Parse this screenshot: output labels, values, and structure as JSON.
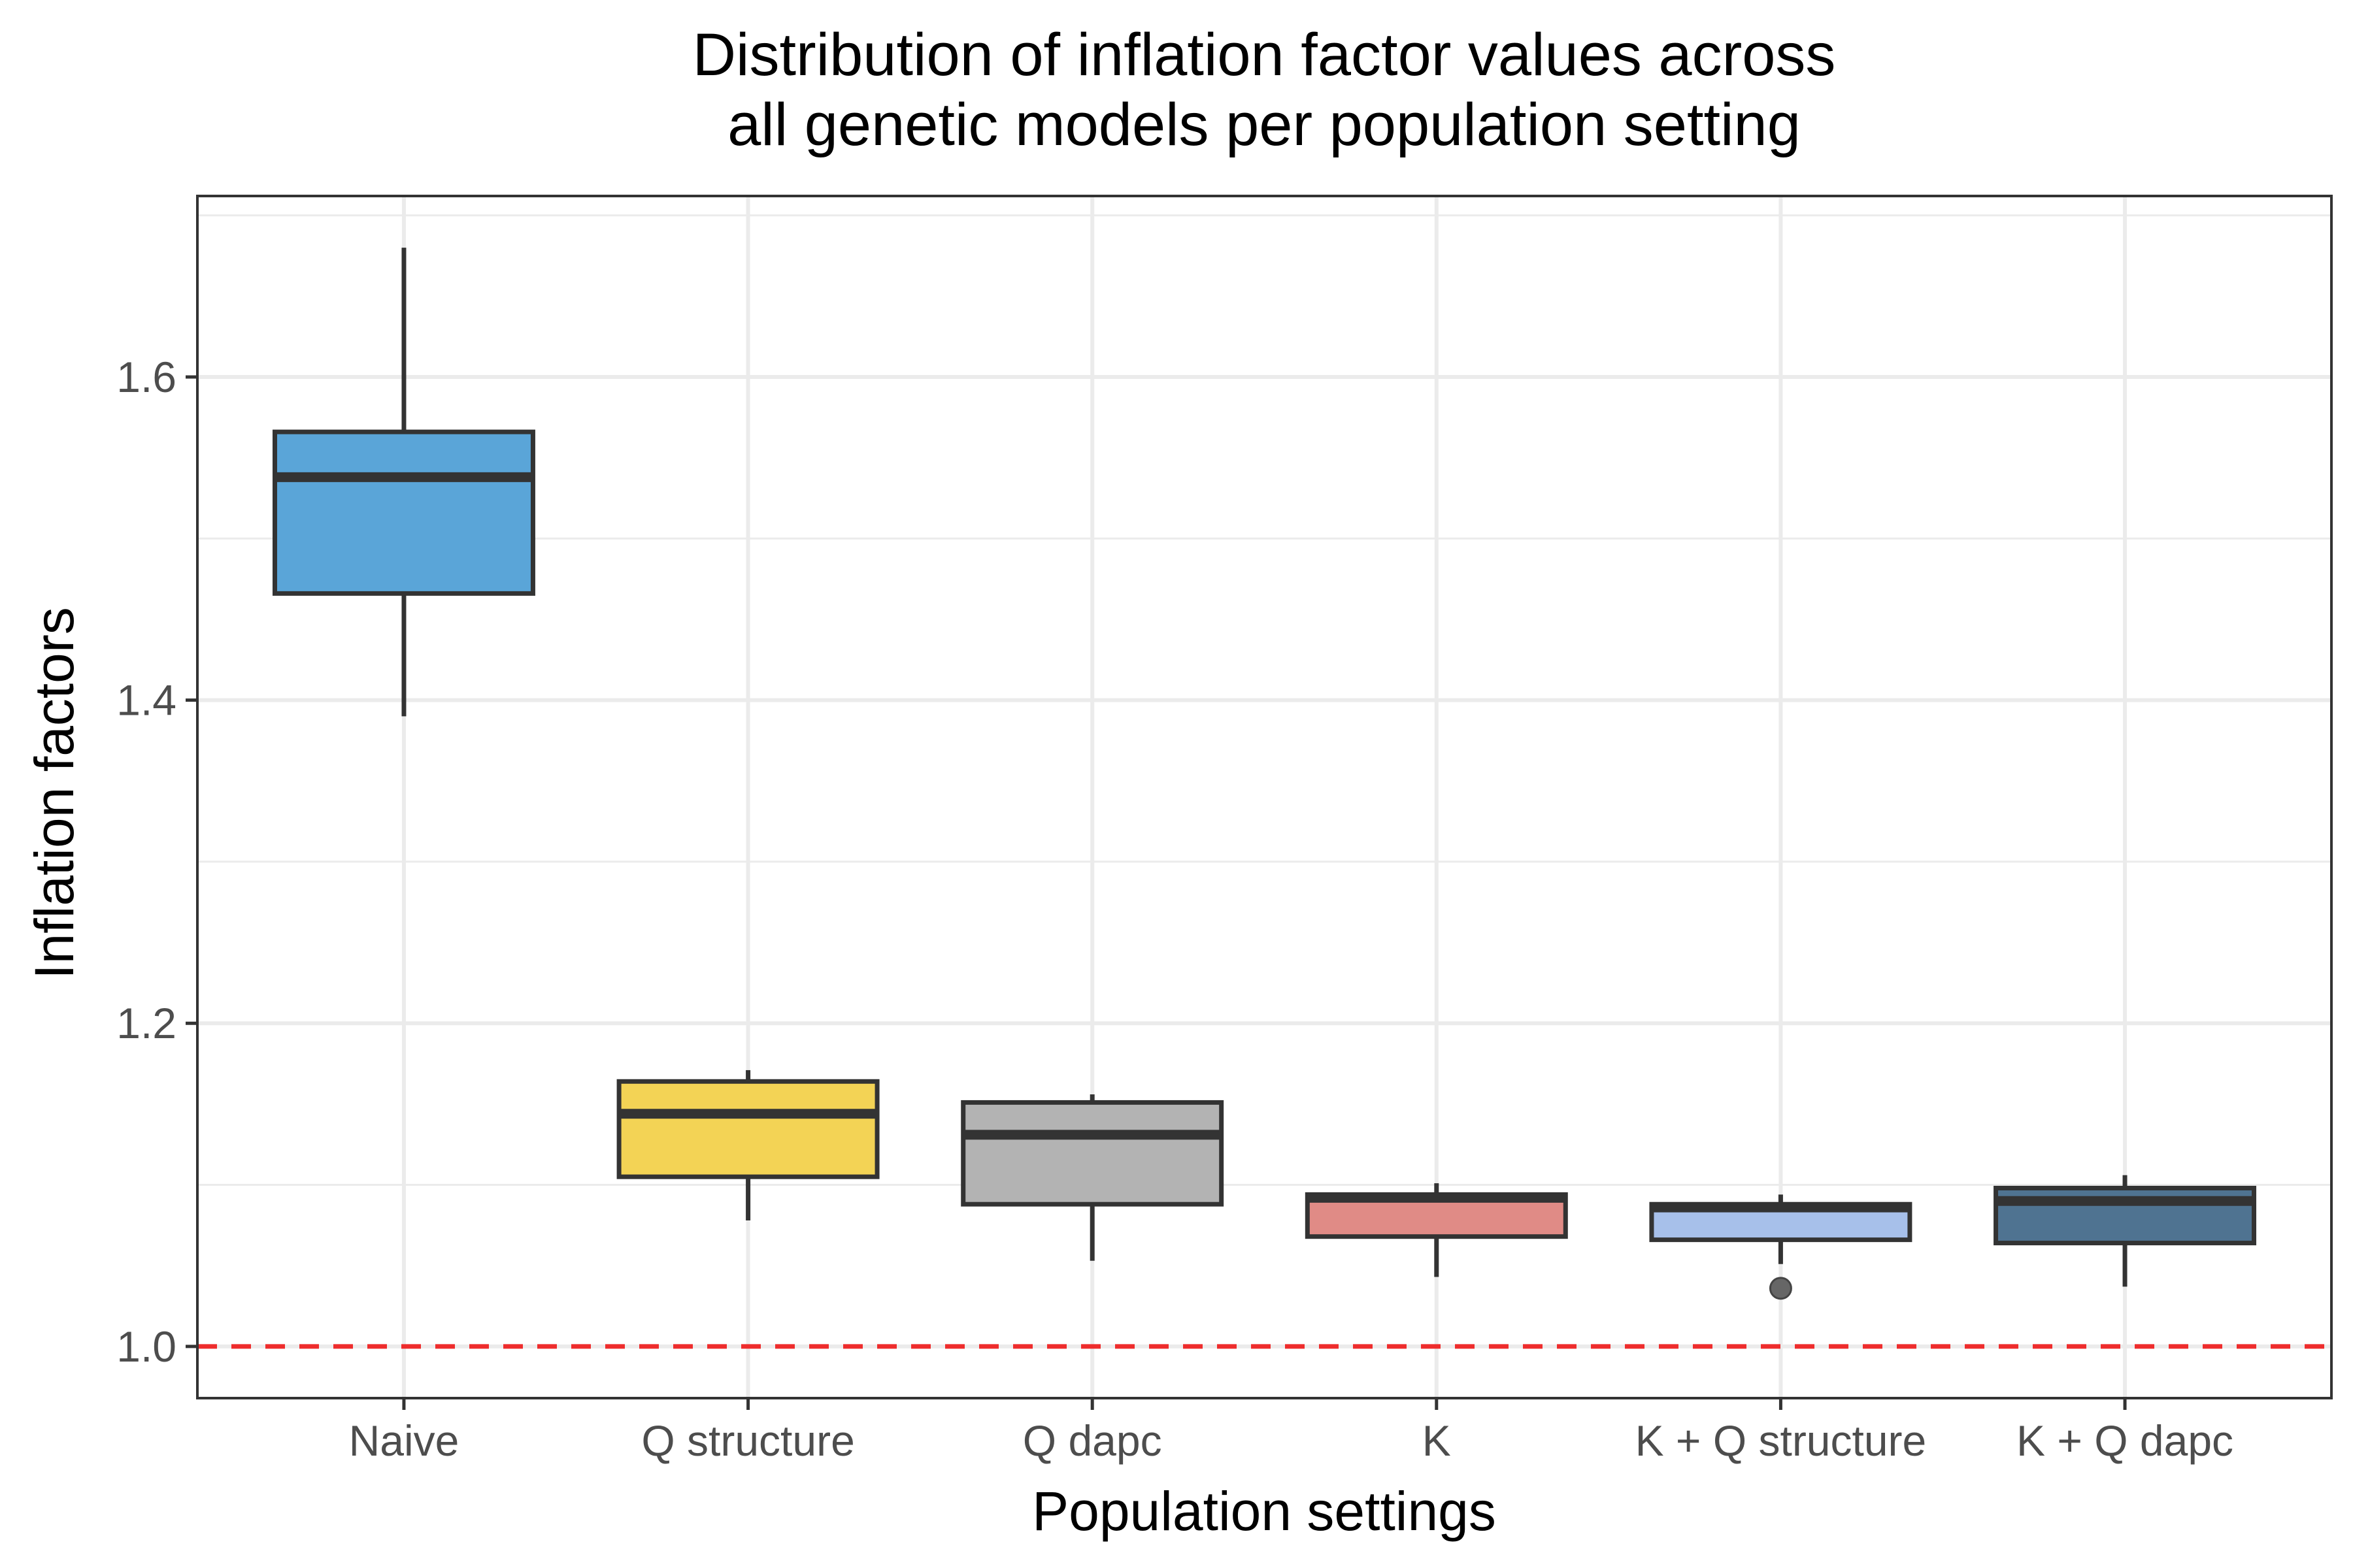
{
  "chart_data": {
    "type": "boxplot",
    "title_lines": [
      "Distribution of inflation factor values across",
      "all genetic models per population setting"
    ],
    "xlabel": "Population settings",
    "ylabel": "Inflation factors",
    "ylim": [
      0.968,
      1.712
    ],
    "yticks": [
      {
        "value": 1.0,
        "label": "1.0"
      },
      {
        "value": 1.2,
        "label": "1.2"
      },
      {
        "value": 1.4,
        "label": "1.4"
      },
      {
        "value": 1.6,
        "label": "1.6"
      }
    ],
    "minor_yticks": [
      1.1,
      1.3,
      1.5,
      1.7
    ],
    "grid": true,
    "reference_line": {
      "value": 1.0,
      "color": "#ee2c2c",
      "style": "dashed"
    },
    "box_stroke_color": "#333333",
    "categories": [
      "Naive",
      "Q structure",
      "Q dapc",
      "K",
      "K + Q structure",
      "K + Q dapc"
    ],
    "boxes": [
      {
        "category": "Naive",
        "whisker_low": 1.39,
        "q1": 1.466,
        "median": 1.538,
        "q3": 1.566,
        "whisker_high": 1.68,
        "outliers": [],
        "color": "#5aa5d8"
      },
      {
        "category": "Q structure",
        "whisker_low": 1.078,
        "q1": 1.105,
        "median": 1.144,
        "q3": 1.164,
        "whisker_high": 1.171,
        "outliers": [],
        "color": "#f3d355"
      },
      {
        "category": "Q dapc",
        "whisker_low": 1.053,
        "q1": 1.088,
        "median": 1.131,
        "q3": 1.151,
        "whisker_high": 1.156,
        "outliers": [],
        "color": "#b3b3b3"
      },
      {
        "category": "K",
        "whisker_low": 1.043,
        "q1": 1.068,
        "median": 1.092,
        "q3": 1.094,
        "whisker_high": 1.101,
        "outliers": [],
        "color": "#e08b86"
      },
      {
        "category": "K + Q structure",
        "whisker_low": 1.051,
        "q1": 1.066,
        "median": 1.086,
        "q3": 1.088,
        "whisker_high": 1.094,
        "outliers": [
          1.036
        ],
        "color": "#a7c0ea"
      },
      {
        "category": "K + Q dapc",
        "whisker_low": 1.037,
        "q1": 1.064,
        "median": 1.09,
        "q3": 1.098,
        "whisker_high": 1.106,
        "outliers": [],
        "color": "#4f7391"
      }
    ]
  }
}
